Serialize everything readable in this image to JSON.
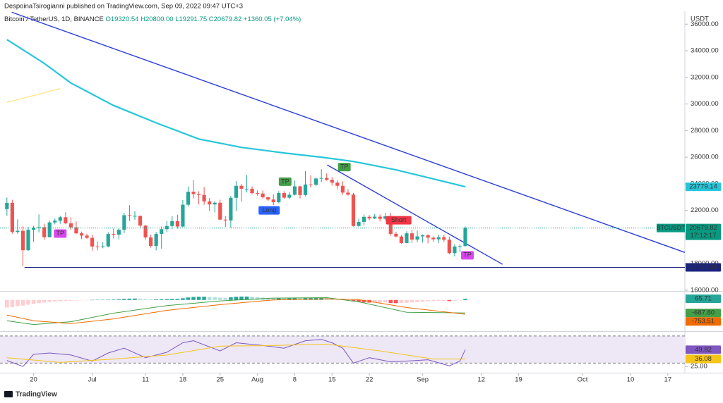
{
  "header": {
    "byline": "DespoinaTsirogianni published on TradingView.com, Sep 09, 2022 09:47 UTC+3",
    "brand": "TradingView"
  },
  "chart_data": [
    {
      "type": "candlestick",
      "title": "Bitcoin / TetherUS, 1D, BINANCE",
      "ohlc_labels": [
        "O19320.54",
        "H20800.00",
        "L19291.75",
        "C20679.82",
        "+1360.05 (+7.04%)"
      ],
      "unit": "USDT",
      "up_color": "#26a69a",
      "down_color": "#ef5350",
      "open": [
        22100,
        22570,
        20380,
        20470,
        19010,
        20550,
        20700,
        20740,
        19990,
        21100,
        21230,
        21490,
        21030,
        20730,
        20280,
        20110,
        19940,
        19290,
        19250,
        19300,
        20230,
        20180,
        20550,
        21640,
        21590,
        21590,
        20860,
        19970,
        19330,
        20230,
        20590,
        20830,
        21200,
        20790,
        22430,
        23400,
        23230,
        23160,
        22680,
        22450,
        22580,
        21310,
        21250,
        22950,
        23850,
        23630,
        23630,
        23300,
        23270,
        22990,
        22820,
        22620,
        23310,
        22960,
        23180,
        23810,
        23160,
        23950,
        23930,
        24400,
        24440,
        24300,
        24090,
        23850,
        23340,
        23190,
        20830,
        21140,
        21520,
        21400,
        21530,
        21370,
        21560,
        20240,
        20040,
        19550,
        20280,
        19810,
        20050,
        20130,
        19950,
        19830,
        19990,
        19800,
        18790,
        19290,
        19320.54
      ],
      "high": [
        22970,
        22800,
        21330,
        20800,
        20780,
        20850,
        21700,
        21000,
        21230,
        21400,
        21600,
        21860,
        21480,
        21180,
        20410,
        20250,
        20180,
        19670,
        19630,
        20360,
        20640,
        20660,
        21810,
        22400,
        21950,
        21600,
        20900,
        20200,
        20370,
        20790,
        21200,
        21570,
        21680,
        22780,
        23790,
        24270,
        23440,
        23760,
        22930,
        22690,
        22810,
        21580,
        23100,
        24200,
        24000,
        24670,
        23800,
        23510,
        23500,
        23040,
        23220,
        23450,
        23450,
        23390,
        24240,
        23860,
        24950,
        24650,
        24470,
        25100,
        24780,
        24500,
        24270,
        24190,
        23600,
        23320,
        21370,
        21700,
        21650,
        21730,
        21700,
        21820,
        21810,
        20400,
        20140,
        20430,
        20550,
        20490,
        20200,
        20220,
        20040,
        20180,
        20170,
        20040,
        19460,
        19460,
        20800.0
      ],
      "low": [
        21600,
        20250,
        20250,
        17800,
        18960,
        19640,
        20350,
        19800,
        19970,
        20950,
        21000,
        20960,
        20520,
        20220,
        19850,
        19850,
        18980,
        19000,
        19160,
        19220,
        19900,
        19820,
        20290,
        21200,
        21300,
        20650,
        19800,
        19200,
        19000,
        19130,
        20370,
        20600,
        20630,
        20750,
        22300,
        22900,
        22450,
        22430,
        21950,
        21850,
        21280,
        20760,
        20700,
        21950,
        22660,
        23350,
        23220,
        23100,
        22890,
        22720,
        22400,
        22530,
        22880,
        22830,
        23120,
        22900,
        23060,
        23720,
        23820,
        24140,
        24240,
        23870,
        23590,
        23180,
        23120,
        20780,
        20780,
        20880,
        21260,
        21350,
        21170,
        21250,
        20100,
        19980,
        19480,
        19530,
        19560,
        19620,
        19580,
        19530,
        19650,
        19550,
        19650,
        18700,
        18550,
        18850,
        19291.75
      ],
      "close": [
        22570,
        20380,
        20470,
        19010,
        20550,
        20700,
        20740,
        19990,
        21100,
        21230,
        21490,
        21030,
        20730,
        20280,
        20110,
        19940,
        19290,
        19250,
        19300,
        20230,
        20180,
        20550,
        21640,
        21590,
        21590,
        20860,
        19970,
        19330,
        20230,
        20590,
        20830,
        21200,
        20790,
        22430,
        23400,
        23230,
        23160,
        22680,
        22450,
        22580,
        21310,
        21250,
        22950,
        23850,
        23630,
        23630,
        23300,
        23270,
        22990,
        22820,
        22620,
        23310,
        22960,
        23180,
        23810,
        23160,
        23950,
        23930,
        24400,
        24440,
        24300,
        24090,
        23850,
        23340,
        23190,
        20830,
        21140,
        21520,
        21400,
        21530,
        21370,
        21560,
        20240,
        20040,
        19550,
        20280,
        19810,
        20050,
        20130,
        19950,
        19830,
        19990,
        19800,
        18790,
        19290,
        19320,
        20679.82
      ],
      "xlim": [
        -1.3,
        127.2
      ],
      "xticks": [
        {
          "value": 5,
          "label": "20"
        },
        {
          "value": 16,
          "label": "Jul"
        },
        {
          "value": 26,
          "label": "11"
        },
        {
          "value": 33,
          "label": "18"
        },
        {
          "value": 40,
          "label": "25"
        },
        {
          "value": 47,
          "label": "Aug"
        },
        {
          "value": 54,
          "label": "8"
        },
        {
          "value": 61,
          "label": "15"
        },
        {
          "value": 68,
          "label": "22"
        },
        {
          "value": 78,
          "label": "Sep"
        },
        {
          "value": 89,
          "label": "12"
        },
        {
          "value": 96,
          "label": "19"
        },
        {
          "value": 108,
          "label": "Oct"
        },
        {
          "value": 117,
          "label": "10"
        },
        {
          "value": 124,
          "label": "17"
        }
      ],
      "ylim": [
        16000,
        36650
      ],
      "yticks": [
        {
          "value": 16000,
          "label": "16000.00"
        },
        {
          "value": 18000,
          "label": "18000.00"
        },
        {
          "value": 20000,
          "label": "20000.00"
        },
        {
          "value": 22000,
          "label": "22000.00"
        },
        {
          "value": 24000,
          "label": "24000.00"
        },
        {
          "value": 26000,
          "label": "26000.00"
        },
        {
          "value": 28000,
          "label": "28000.00"
        },
        {
          "value": 30000,
          "label": "30000.00"
        },
        {
          "value": 32000,
          "label": "32000.00"
        },
        {
          "value": 34000,
          "label": "34000.00"
        },
        {
          "value": 36000,
          "label": "36000.00"
        }
      ],
      "lines": [
        {
          "color": "#26c6da",
          "x": [
            0,
            7,
            12,
            20,
            28,
            36,
            44,
            52,
            59,
            65,
            73,
            80,
            86
          ],
          "values": [
            34840,
            33050,
            31580,
            29890,
            28580,
            27370,
            26740,
            26320,
            26000,
            25680,
            25050,
            24370,
            23779.14
          ]
        },
        {
          "color": "#ffe58a",
          "x": [
            0,
            10
          ],
          "values": [
            30110,
            31160
          ]
        },
        {
          "color": "#2d3ed6",
          "x": [
            0.9,
            127.2
          ],
          "values": [
            36895,
            18842
          ]
        },
        {
          "color": "#2d3ed6",
          "x": [
            60.1,
            93
          ],
          "values": [
            25420,
            17950
          ]
        }
      ],
      "support": {
        "value": 17723.39,
        "x": 3.3,
        "color": "#1a237e"
      },
      "last_price": {
        "symbol": "BTCUSDT",
        "countdown": "17:12:17",
        "color": "#089981"
      },
      "markers": [
        {
          "text": "TP",
          "x": 10,
          "y": 20260,
          "color": "#d946ef"
        },
        {
          "text": "Long",
          "x": 49.2,
          "y": 22000,
          "color": "#2962ff"
        },
        {
          "text": "TP",
          "x": 52.2,
          "y": 24160,
          "color": "#43a047"
        },
        {
          "text": "TP",
          "x": 63.3,
          "y": 25260,
          "color": "#43a047"
        },
        {
          "text": "Short",
          "x": 73.5,
          "y": 21260,
          "color": "#f23645"
        },
        {
          "text": "TP",
          "x": 86.4,
          "y": 18630,
          "color": "#d946ef"
        }
      ]
    },
    {
      "type": "macd",
      "ylim": [
        -1500,
        400
      ],
      "histogram": [
        -400,
        -380,
        -330,
        -300,
        -250,
        -200,
        -170,
        -140,
        -100,
        -80,
        -60,
        -50,
        -40,
        -30,
        -20,
        -10,
        5,
        10,
        15,
        20,
        30,
        40,
        60,
        70,
        75,
        70,
        55,
        40,
        40,
        45,
        50,
        60,
        60,
        90,
        130,
        160,
        170,
        170,
        160,
        150,
        120,
        110,
        140,
        170,
        180,
        180,
        170,
        150,
        130,
        110,
        100,
        100,
        90,
        90,
        100,
        90,
        100,
        100,
        110,
        110,
        100,
        80,
        60,
        40,
        20,
        -60,
        -110,
        -130,
        -140,
        -140,
        -140,
        -130,
        -160,
        -170,
        -160,
        -150,
        -130,
        -110,
        -90,
        -70,
        -60,
        -50,
        -50,
        -60,
        -40,
        -20,
        65.71
      ],
      "series": [
        {
          "color": "#43a047",
          "x": [
            0,
            5,
            12,
            20,
            30,
            40,
            50,
            60,
            66,
            75,
            86
          ],
          "values": [
            -1100,
            -1300,
            -1150,
            -700,
            -300,
            -50,
            100,
            120,
            -100,
            -650,
            -687.8
          ]
        },
        {
          "color": "#ef6c00",
          "x": [
            0,
            5,
            12,
            20,
            30,
            40,
            50,
            60,
            66,
            75,
            86
          ],
          "values": [
            -800,
            -1100,
            -1250,
            -1000,
            -550,
            -250,
            0,
            60,
            20,
            -400,
            -753.51
          ]
        }
      ],
      "last_labels": [
        {
          "value": 65.71,
          "label": "65.71",
          "color": "#26a69a"
        },
        {
          "value": -687.8,
          "label": "-687.80",
          "color": "#43a047"
        },
        {
          "value": -753.51,
          "label": "-753.51",
          "color": "#ef6c00"
        }
      ]
    },
    {
      "type": "rsi",
      "ylim": [
        19,
        73
      ],
      "yticks": [
        {
          "value": 25,
          "label": "25.00"
        }
      ],
      "bands": [
        30,
        70
      ],
      "band_color": "#ede7f6",
      "series": [
        {
          "color": "#7e57c2",
          "x": [
            0,
            3,
            5,
            8,
            12,
            16,
            19,
            22,
            26,
            30,
            33,
            35,
            40,
            43,
            48,
            52,
            56,
            59,
            61,
            63,
            65,
            68,
            72,
            75,
            79,
            83,
            85,
            86
          ],
          "values": [
            34,
            25,
            43,
            45,
            42,
            33,
            45,
            52,
            38,
            46,
            60,
            63,
            48,
            60,
            56,
            52,
            63,
            65,
            60,
            52,
            30,
            38,
            32,
            33,
            35,
            26,
            33,
            49.82
          ]
        },
        {
          "color": "#f5c518",
          "x": [
            0,
            10,
            20,
            30,
            40,
            50,
            60,
            70,
            80,
            86
          ],
          "values": [
            38,
            31,
            36,
            42,
            55,
            56,
            58,
            48,
            36,
            36.08
          ]
        }
      ],
      "last_labels": [
        {
          "value": 49.82,
          "color": "#7e57c2"
        },
        {
          "value": 36.08,
          "color": "#f5c518"
        }
      ]
    }
  ]
}
